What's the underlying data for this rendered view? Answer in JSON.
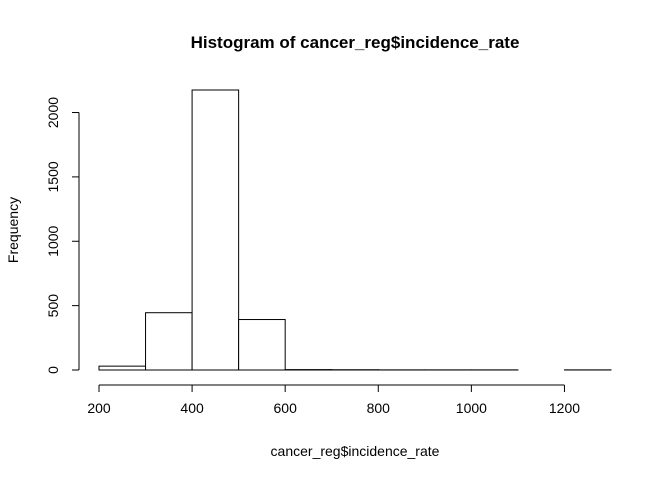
{
  "chart_data": {
    "type": "bar",
    "title": "Histogram of cancer_reg$incidence_rate",
    "xlabel": "cancer_reg$incidence_rate",
    "ylabel": "Frequency",
    "bins": [
      {
        "x0": 200,
        "x1": 300,
        "count": 30
      },
      {
        "x0": 300,
        "x1": 400,
        "count": 445
      },
      {
        "x0": 400,
        "x1": 500,
        "count": 2175
      },
      {
        "x0": 500,
        "x1": 600,
        "count": 392
      },
      {
        "x0": 600,
        "x1": 700,
        "count": 3
      },
      {
        "x0": 700,
        "x1": 800,
        "count": 2
      },
      {
        "x0": 800,
        "x1": 900,
        "count": 1
      },
      {
        "x0": 900,
        "x1": 1000,
        "count": 1
      },
      {
        "x0": 1000,
        "x1": 1100,
        "count": 1
      },
      {
        "x0": 1100,
        "x1": 1200,
        "count": 0
      },
      {
        "x0": 1200,
        "x1": 1300,
        "count": 1
      }
    ],
    "xticks": [
      200,
      400,
      600,
      800,
      1000,
      1200
    ],
    "yticks": [
      0,
      500,
      1000,
      1500,
      2000
    ],
    "xlim": [
      200,
      1300
    ],
    "ylim": [
      0,
      2175
    ],
    "grid": false,
    "bar_fill": "#ffffff",
    "bar_stroke": "#000000"
  }
}
